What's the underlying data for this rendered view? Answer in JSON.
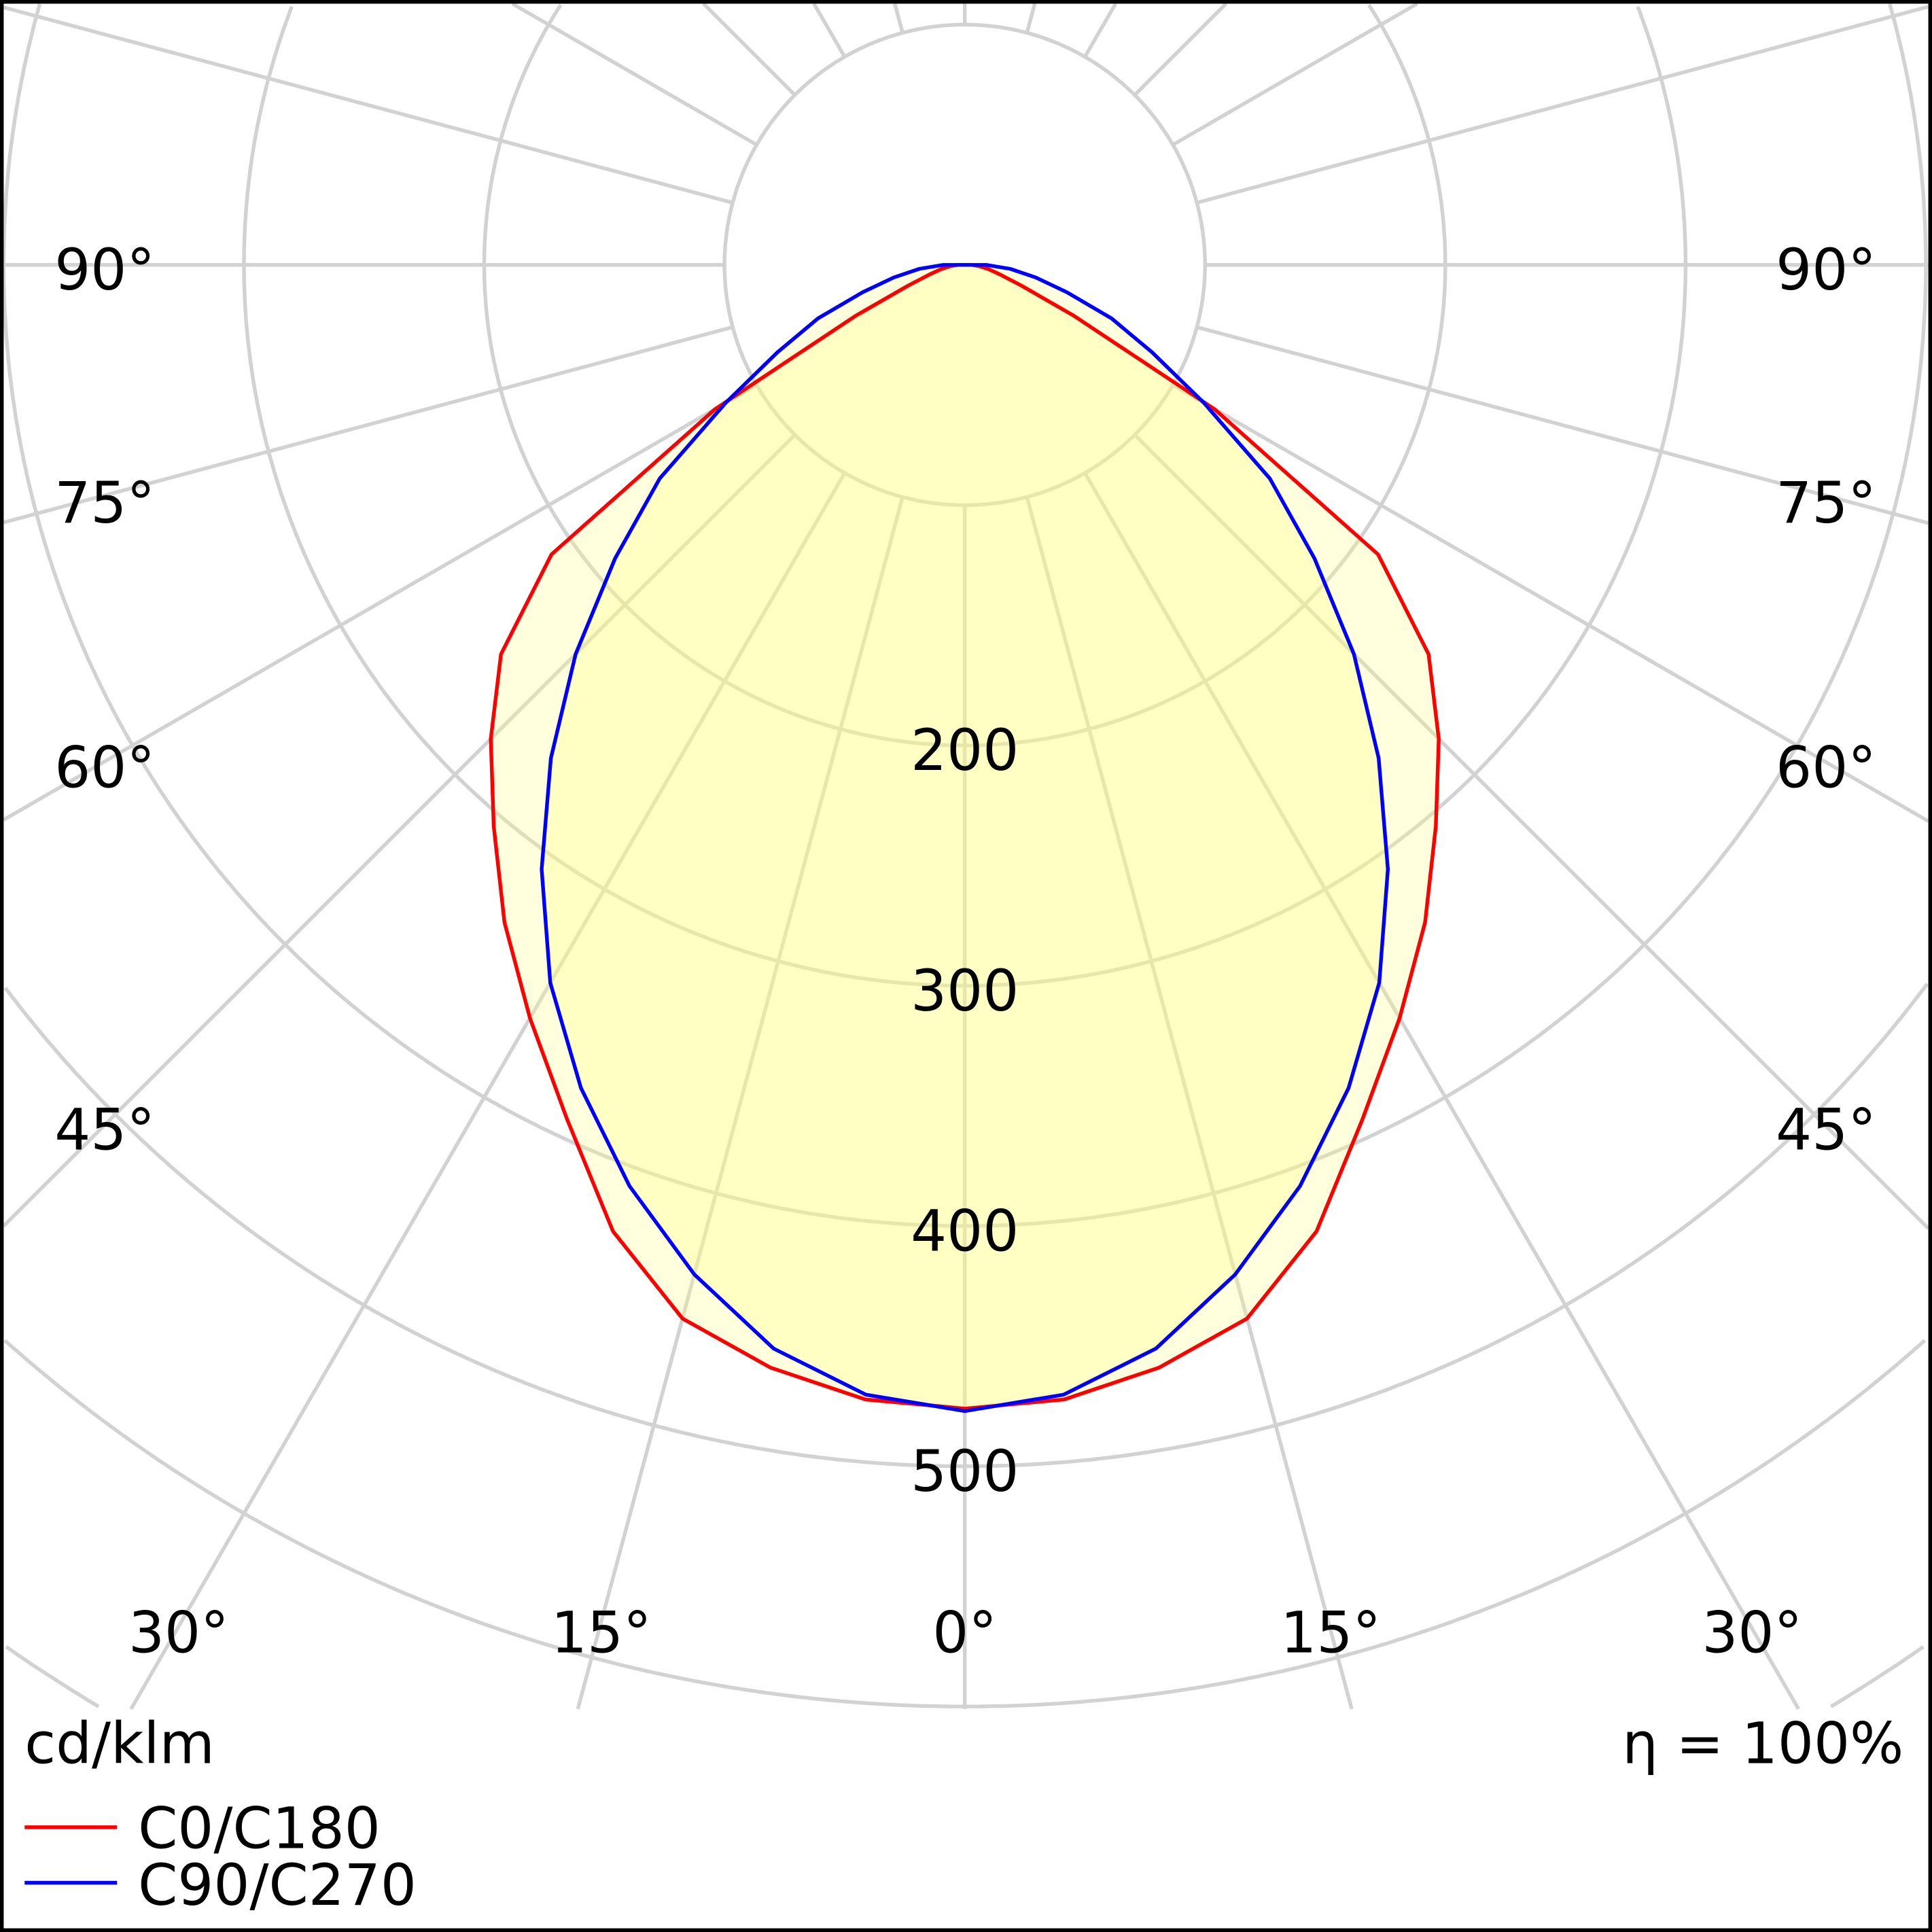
{
  "chart_data": {
    "type": "polar",
    "title": "",
    "unit_label": "cd/klm",
    "efficiency_label": "η = 100%",
    "radial_range": [
      0,
      600
    ],
    "radial_ticks": [
      100,
      200,
      300,
      400,
      500,
      600,
      700,
      800
    ],
    "radial_tick_labels": [
      "200",
      "300",
      "400",
      "500"
    ],
    "radial_tick_label_values": [
      200,
      300,
      400,
      500
    ],
    "angle_labels": {
      "left": [
        "90°",
        "75°",
        "60°",
        "45°",
        "30°",
        "15°"
      ],
      "center": "0°",
      "right": [
        "15°",
        "30°",
        "45°",
        "60°",
        "75°",
        "90°"
      ]
    },
    "grid": true,
    "legend_position": "bottom-left",
    "angles": [
      0,
      5,
      10,
      15,
      20,
      25,
      30,
      35,
      40,
      45,
      50,
      55,
      60,
      65,
      70,
      75,
      80,
      85,
      90
    ],
    "series": [
      {
        "name": "C0/C180",
        "color": "#ff0000",
        "values": [
          476,
          474,
          466,
          454,
          428,
          392,
          362,
          334,
          305,
          279,
          252,
          210,
          120,
          50,
          25,
          15,
          10,
          6,
          3
        ]
      },
      {
        "name": "C90/C270",
        "color": "#0000ff",
        "values": [
          477,
          472,
          458,
          435,
          408,
          378,
          345,
          307,
          268,
          229,
          190,
          155,
          115,
          86,
          65,
          44,
          30,
          19,
          9
        ]
      }
    ],
    "fill_color": "#ffff80",
    "grid_color": "#d2d2d2"
  }
}
